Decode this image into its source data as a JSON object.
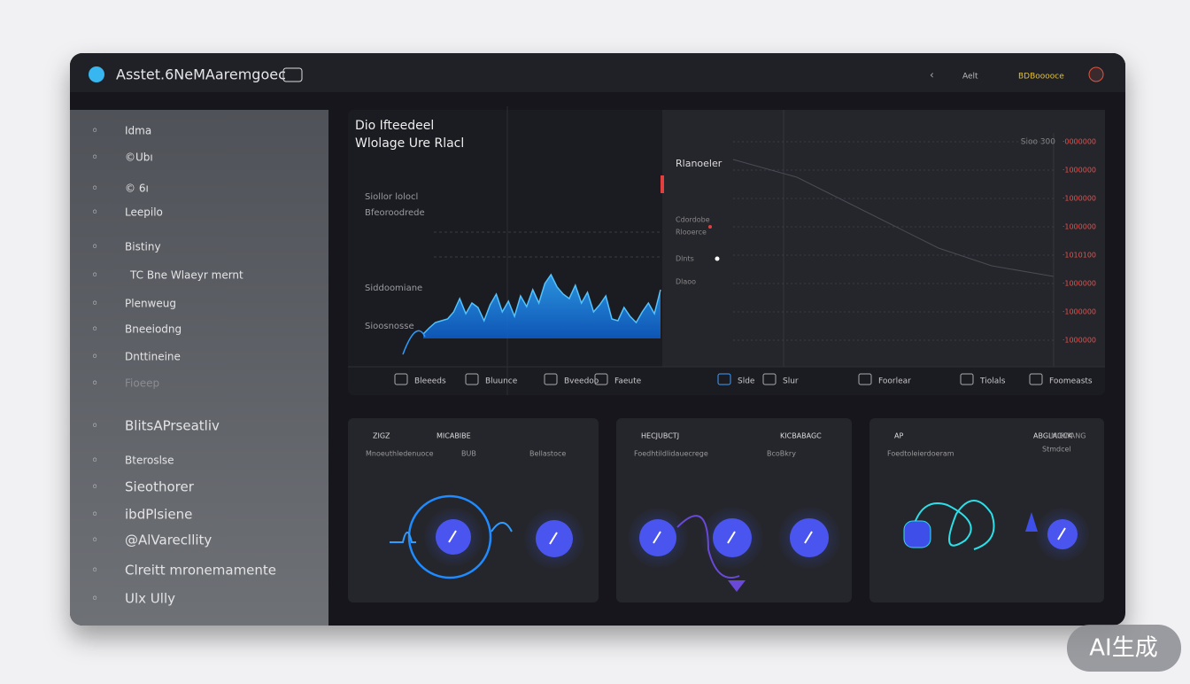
{
  "header": {
    "title": "Asstet.6NeMAaremgoec",
    "menu": "Aelt",
    "status": "BDBooooce"
  },
  "sidebar": {
    "items": [
      "Idma",
      "©Ubı",
      "© 6ı",
      "Leepilo",
      "Bistiny",
      "TC Bne Wlaeyr mernt",
      "Plenweug",
      "Bneeiodng",
      "Dnttineine",
      "Fioeep",
      "BlitsAPrseatliv",
      "Bteroslse",
      "Sieothorer",
      "ibdPlsiene",
      "@AlVarecllity",
      "Clreitt mronemamente",
      "Ulx Ully"
    ]
  },
  "overview": {
    "title": "Dio Ifteedeel",
    "subtitle": "Wlolage Ure Rlacl",
    "labels": [
      "Siollor lolocl",
      "Bfeoroodrede",
      "Siddoomiane",
      "Sioosnosse"
    ],
    "wave": [
      5,
      12,
      18,
      20,
      22,
      30,
      45,
      28,
      40,
      35,
      20,
      38,
      50,
      30,
      42,
      25,
      48,
      36,
      55,
      40,
      62,
      72,
      58,
      50,
      45,
      60,
      40,
      52,
      30,
      38,
      48,
      22,
      20,
      35,
      25,
      18,
      30,
      40,
      28,
      55
    ],
    "panel_title": "Rlanoeler",
    "side_labels": [
      "Cdordobe",
      "Rlooerce",
      "Dlnts",
      "Dlaoo"
    ],
    "axis_top": "Sioo 300",
    "axis_labels": [
      "·0000000",
      "·1000000",
      "·1000000",
      "·1000000",
      "·1010100",
      "·1000000",
      "·1000000",
      "·1000000"
    ],
    "toolbar": [
      "Bleeeds",
      "Bluunce",
      "Bveedoo",
      "Faeute",
      "Slde",
      "Slur",
      "Foorlear",
      "Tiolals",
      "Foomeasts"
    ]
  },
  "cards": [
    {
      "title": "ZIGZ",
      "tag": "MICABIBE",
      "subtitle": "Mnoeuthledenuoce",
      "note": "BUB",
      "extra": "Bellastoce"
    },
    {
      "title": "HECJUBCTJ",
      "tag": "KICBABAGC",
      "subtitle": "Foedhtildlidauecrege",
      "note": "BcoBkry",
      "extra": ""
    },
    {
      "title": "AP",
      "tag": "ABGLAOCK",
      "subtitle": "Foedtoleierdoeram",
      "note": "MIEWANG",
      "extra": "Stmdcel"
    }
  ],
  "watermark": "AI生成"
}
